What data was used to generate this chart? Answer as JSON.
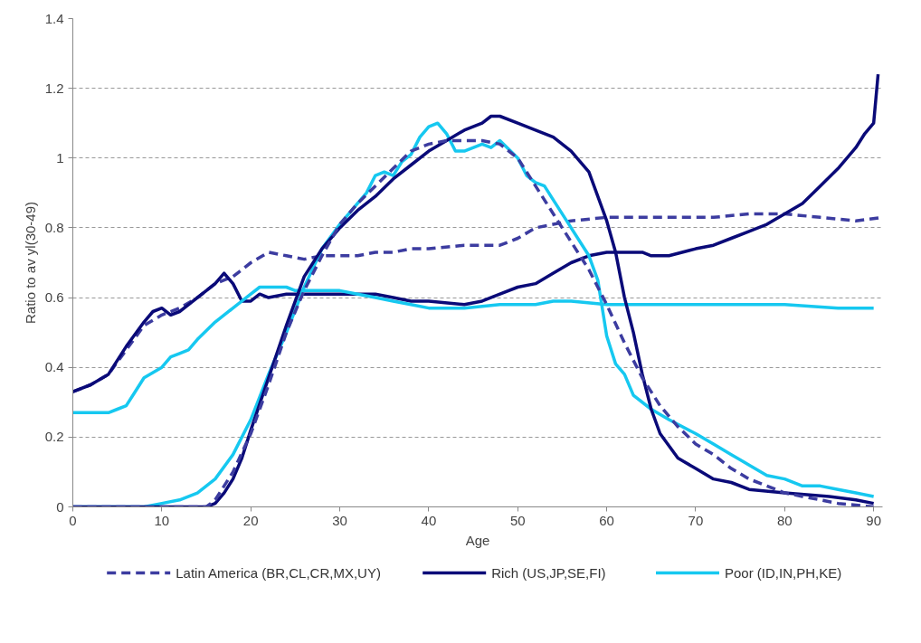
{
  "chart_data": {
    "type": "line",
    "xlabel": "Age",
    "ylabel": "Ratio to av yl(30-49)",
    "xlim": [
      0,
      91
    ],
    "xticks": [
      0,
      10,
      20,
      30,
      40,
      50,
      60,
      70,
      80,
      90
    ],
    "ylim": [
      0,
      1.4
    ],
    "yticks": [
      0,
      0.2,
      0.4,
      0.6,
      0.8,
      1,
      1.2,
      1.4
    ],
    "grid": "y",
    "legend": "bottom",
    "series": [
      {
        "name": "Latin America (BR,CL,CR,MX,UY)",
        "color": "#3c3ca0",
        "line_style": "dashed",
        "x": [
          0,
          2,
          4,
          6,
          8,
          10,
          12,
          14,
          16,
          18,
          20,
          22,
          24,
          26,
          28,
          30,
          32,
          34,
          36,
          38,
          40,
          44,
          48,
          50,
          52,
          54,
          56,
          60,
          64,
          68,
          72,
          76,
          80,
          84,
          88,
          91
        ],
        "values": [
          0.33,
          0.35,
          0.38,
          0.45,
          0.52,
          0.55,
          0.57,
          0.6,
          0.64,
          0.66,
          0.7,
          0.73,
          0.72,
          0.71,
          0.72,
          0.72,
          0.72,
          0.73,
          0.73,
          0.74,
          0.74,
          0.75,
          0.75,
          0.77,
          0.8,
          0.81,
          0.82,
          0.83,
          0.83,
          0.83,
          0.83,
          0.84,
          0.84,
          0.83,
          0.82,
          0.83
        ]
      },
      {
        "name": "Rich (US,JP,SE,FI)",
        "color": "#0a0a78",
        "line_style": "solid",
        "x": [
          0,
          2,
          4,
          6,
          8,
          9,
          10,
          11,
          12,
          13,
          14,
          15,
          16,
          17,
          18,
          19,
          20,
          21,
          22,
          24,
          26,
          30,
          34,
          36,
          38,
          40,
          44,
          46,
          48,
          50,
          52,
          54,
          56,
          58,
          60,
          62,
          64,
          65,
          67,
          70,
          72,
          74,
          76,
          78,
          80,
          82,
          84,
          86,
          88,
          89,
          90,
          90.5
        ],
        "values": [
          0.33,
          0.35,
          0.38,
          0.46,
          0.53,
          0.56,
          0.57,
          0.55,
          0.56,
          0.58,
          0.6,
          0.62,
          0.64,
          0.67,
          0.64,
          0.59,
          0.59,
          0.61,
          0.6,
          0.61,
          0.61,
          0.61,
          0.61,
          0.6,
          0.59,
          0.59,
          0.58,
          0.59,
          0.61,
          0.63,
          0.64,
          0.67,
          0.7,
          0.72,
          0.73,
          0.73,
          0.73,
          0.72,
          0.72,
          0.74,
          0.75,
          0.77,
          0.79,
          0.81,
          0.84,
          0.87,
          0.92,
          0.97,
          1.03,
          1.07,
          1.1,
          1.24
        ]
      },
      {
        "name": "Poor (ID,IN,PH,KE)",
        "color": "#16c8f0",
        "line_style": "solid",
        "x": [
          0,
          2,
          4,
          5,
          6,
          7,
          8,
          10,
          11,
          12,
          13,
          14,
          16,
          18,
          20,
          21,
          22,
          24,
          25,
          28,
          30,
          32,
          34,
          36,
          38,
          40,
          44,
          48,
          52,
          54,
          56,
          60,
          64,
          70,
          80,
          86,
          90
        ],
        "values": [
          0.27,
          0.27,
          0.27,
          0.28,
          0.29,
          0.33,
          0.37,
          0.4,
          0.43,
          0.44,
          0.45,
          0.48,
          0.53,
          0.57,
          0.61,
          0.63,
          0.63,
          0.63,
          0.62,
          0.62,
          0.62,
          0.61,
          0.6,
          0.59,
          0.58,
          0.57,
          0.57,
          0.58,
          0.58,
          0.59,
          0.59,
          0.58,
          0.58,
          0.58,
          0.58,
          0.57,
          0.57
        ]
      },
      {
        "color": "#16c8f0",
        "line_style": "solid",
        "x": [
          0,
          8,
          10,
          12,
          14,
          16,
          18,
          20,
          22,
          24,
          26,
          28,
          30,
          32,
          33,
          34,
          35,
          36,
          37,
          38,
          39,
          40,
          41,
          42,
          43,
          44,
          46,
          47,
          48,
          50,
          51,
          52,
          53,
          54,
          56,
          58,
          59,
          60,
          61,
          62,
          63,
          65,
          67,
          70,
          72,
          74,
          76,
          78,
          80,
          82,
          84,
          86,
          88,
          90
        ],
        "values": [
          0,
          0,
          0.01,
          0.02,
          0.04,
          0.08,
          0.15,
          0.25,
          0.38,
          0.5,
          0.63,
          0.74,
          0.81,
          0.87,
          0.9,
          0.95,
          0.96,
          0.95,
          0.99,
          1.01,
          1.06,
          1.09,
          1.1,
          1.07,
          1.02,
          1.02,
          1.04,
          1.03,
          1.05,
          1.0,
          0.95,
          0.93,
          0.92,
          0.88,
          0.8,
          0.72,
          0.65,
          0.49,
          0.41,
          0.38,
          0.32,
          0.28,
          0.25,
          0.21,
          0.18,
          0.15,
          0.12,
          0.09,
          0.08,
          0.06,
          0.06,
          0.05,
          0.04,
          0.03
        ]
      },
      {
        "color": "#0a0a78",
        "line_style": "solid",
        "x": [
          0,
          5,
          10,
          15,
          16,
          17,
          18,
          19,
          20,
          22,
          24,
          26,
          28,
          30,
          32,
          34,
          36,
          38,
          40,
          42,
          44,
          46,
          47,
          48,
          50,
          52,
          54,
          56,
          57,
          58,
          60,
          61,
          62,
          63,
          64,
          65,
          66,
          68,
          70,
          72,
          74,
          76,
          80,
          85,
          88,
          90
        ],
        "values": [
          0,
          0,
          0,
          0,
          0.01,
          0.04,
          0.08,
          0.14,
          0.22,
          0.37,
          0.52,
          0.66,
          0.74,
          0.8,
          0.85,
          0.89,
          0.94,
          0.98,
          1.02,
          1.05,
          1.08,
          1.1,
          1.12,
          1.12,
          1.1,
          1.08,
          1.06,
          1.02,
          0.99,
          0.96,
          0.82,
          0.73,
          0.6,
          0.5,
          0.38,
          0.28,
          0.21,
          0.14,
          0.11,
          0.08,
          0.07,
          0.05,
          0.04,
          0.03,
          0.02,
          0.01
        ]
      },
      {
        "color": "#3c3ca0",
        "line_style": "dashed",
        "x": [
          0,
          5,
          10,
          15,
          16,
          18,
          20,
          22,
          24,
          26,
          28,
          30,
          32,
          34,
          36,
          38,
          40,
          42,
          44,
          46,
          48,
          50,
          52,
          54,
          56,
          58,
          60,
          62,
          64,
          66,
          68,
          70,
          72,
          74,
          76,
          78,
          80,
          82,
          86,
          90
        ],
        "values": [
          0,
          0,
          0,
          0,
          0.02,
          0.1,
          0.21,
          0.35,
          0.5,
          0.62,
          0.72,
          0.81,
          0.87,
          0.92,
          0.97,
          1.02,
          1.04,
          1.05,
          1.05,
          1.05,
          1.04,
          1.0,
          0.92,
          0.84,
          0.76,
          0.68,
          0.58,
          0.47,
          0.37,
          0.29,
          0.23,
          0.18,
          0.15,
          0.11,
          0.08,
          0.06,
          0.04,
          0.03,
          0.01,
          0
        ]
      }
    ]
  }
}
